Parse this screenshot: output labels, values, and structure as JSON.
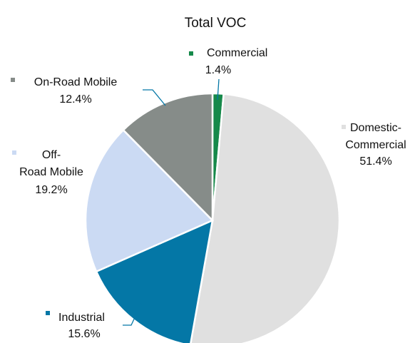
{
  "chart_data": {
    "type": "pie",
    "title": "Total VOC",
    "categories": [
      "Commercial",
      "Domestic-Commercial",
      "Industrial",
      "Off-Road Mobile",
      "On-Road Mobile"
    ],
    "values": [
      1.4,
      51.4,
      15.6,
      19.2,
      12.4
    ],
    "value_labels": [
      "1.4%",
      "51.4%",
      "15.6%",
      "19.2%",
      "12.4%"
    ],
    "colors": [
      "#16894a",
      "#e0e0e0",
      "#0477a6",
      "#cbdaf3",
      "#868c89"
    ]
  }
}
